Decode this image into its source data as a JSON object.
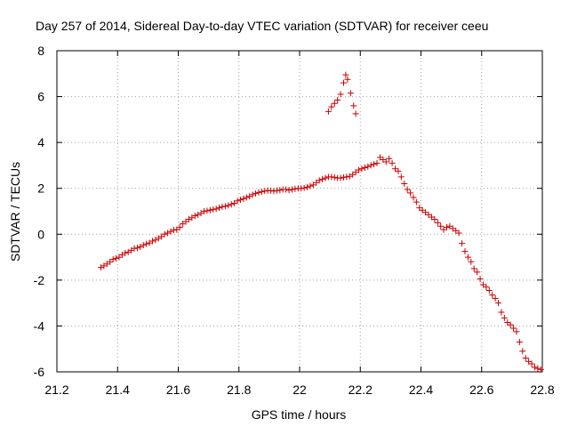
{
  "chart_data": {
    "type": "scatter",
    "title": "Day 257 of 2014, Sidereal Day-to-day VTEC variation (SDTVAR) for receiver ceeu",
    "xlabel": "GPS time / hours",
    "ylabel": "SDTVAR / TECUs",
    "xlim": [
      21.2,
      22.8
    ],
    "ylim": [
      -6,
      8
    ],
    "xticks": [
      21.2,
      21.4,
      21.6,
      21.8,
      22.0,
      22.2,
      22.4,
      22.6,
      22.8
    ],
    "xtick_labels": [
      "21.2",
      "21.4",
      "21.6",
      "21.8",
      "22",
      "22.2",
      "22.4",
      "22.6",
      "22.8"
    ],
    "yticks": [
      -6,
      -4,
      -2,
      0,
      2,
      4,
      6,
      8
    ],
    "ytick_labels": [
      "-6",
      "-4",
      "-2",
      "0",
      "2",
      "4",
      "6",
      "8"
    ],
    "grid": true,
    "marker": "+",
    "marker_color": "#cc0000",
    "series": [
      {
        "name": "SDTVAR",
        "points": [
          [
            21.345,
            -1.45
          ],
          [
            21.355,
            -1.38
          ],
          [
            21.365,
            -1.3
          ],
          [
            21.375,
            -1.2
          ],
          [
            21.385,
            -1.1
          ],
          [
            21.395,
            -1.05
          ],
          [
            21.405,
            -1.0
          ],
          [
            21.415,
            -0.9
          ],
          [
            21.425,
            -0.82
          ],
          [
            21.435,
            -0.78
          ],
          [
            21.445,
            -0.7
          ],
          [
            21.455,
            -0.62
          ],
          [
            21.465,
            -0.6
          ],
          [
            21.475,
            -0.55
          ],
          [
            21.485,
            -0.48
          ],
          [
            21.495,
            -0.42
          ],
          [
            21.505,
            -0.38
          ],
          [
            21.515,
            -0.3
          ],
          [
            21.525,
            -0.25
          ],
          [
            21.535,
            -0.18
          ],
          [
            21.545,
            -0.1
          ],
          [
            21.555,
            0.0
          ],
          [
            21.565,
            0.05
          ],
          [
            21.575,
            0.12
          ],
          [
            21.585,
            0.18
          ],
          [
            21.595,
            0.2
          ],
          [
            21.605,
            0.3
          ],
          [
            21.615,
            0.45
          ],
          [
            21.625,
            0.55
          ],
          [
            21.635,
            0.65
          ],
          [
            21.645,
            0.72
          ],
          [
            21.655,
            0.8
          ],
          [
            21.665,
            0.85
          ],
          [
            21.675,
            0.92
          ],
          [
            21.685,
            1.0
          ],
          [
            21.695,
            1.02
          ],
          [
            21.705,
            1.05
          ],
          [
            21.715,
            1.08
          ],
          [
            21.725,
            1.1
          ],
          [
            21.735,
            1.15
          ],
          [
            21.745,
            1.2
          ],
          [
            21.755,
            1.22
          ],
          [
            21.765,
            1.25
          ],
          [
            21.775,
            1.3
          ],
          [
            21.785,
            1.35
          ],
          [
            21.795,
            1.45
          ],
          [
            21.805,
            1.5
          ],
          [
            21.815,
            1.55
          ],
          [
            21.825,
            1.6
          ],
          [
            21.835,
            1.65
          ],
          [
            21.845,
            1.72
          ],
          [
            21.855,
            1.78
          ],
          [
            21.865,
            1.82
          ],
          [
            21.875,
            1.85
          ],
          [
            21.885,
            1.88
          ],
          [
            21.895,
            1.9
          ],
          [
            21.905,
            1.9
          ],
          [
            21.915,
            1.88
          ],
          [
            21.925,
            1.9
          ],
          [
            21.935,
            1.92
          ],
          [
            21.945,
            1.95
          ],
          [
            21.955,
            1.95
          ],
          [
            21.965,
            1.92
          ],
          [
            21.975,
            1.95
          ],
          [
            21.985,
            1.98
          ],
          [
            21.995,
            2.0
          ],
          [
            22.005,
            2.0
          ],
          [
            22.015,
            2.02
          ],
          [
            22.025,
            2.05
          ],
          [
            22.035,
            2.1
          ],
          [
            22.045,
            2.15
          ],
          [
            22.055,
            2.25
          ],
          [
            22.065,
            2.35
          ],
          [
            22.075,
            2.4
          ],
          [
            22.085,
            2.45
          ],
          [
            22.095,
            2.5
          ],
          [
            22.105,
            2.5
          ],
          [
            22.115,
            2.48
          ],
          [
            22.125,
            2.45
          ],
          [
            22.135,
            2.45
          ],
          [
            22.145,
            2.48
          ],
          [
            22.155,
            2.5
          ],
          [
            22.165,
            2.52
          ],
          [
            22.175,
            2.6
          ],
          [
            22.185,
            2.7
          ],
          [
            22.195,
            2.8
          ],
          [
            22.205,
            2.85
          ],
          [
            22.215,
            2.9
          ],
          [
            22.225,
            2.95
          ],
          [
            22.235,
            3.0
          ],
          [
            22.245,
            3.05
          ],
          [
            22.255,
            3.1
          ],
          [
            22.265,
            3.35
          ],
          [
            22.275,
            3.25
          ],
          [
            22.285,
            3.15
          ],
          [
            22.295,
            3.3
          ],
          [
            22.305,
            3.1
          ],
          [
            22.315,
            2.85
          ],
          [
            22.325,
            2.75
          ],
          [
            22.335,
            2.5
          ],
          [
            22.345,
            2.2
          ],
          [
            22.355,
            1.95
          ],
          [
            22.365,
            1.8
          ],
          [
            22.375,
            1.6
          ],
          [
            22.385,
            1.4
          ],
          [
            22.395,
            1.15
          ],
          [
            22.405,
            1.05
          ],
          [
            22.415,
            0.95
          ],
          [
            22.425,
            0.85
          ],
          [
            22.435,
            0.75
          ],
          [
            22.445,
            0.65
          ],
          [
            22.455,
            0.5
          ],
          [
            22.465,
            0.35
          ],
          [
            22.475,
            0.2
          ],
          [
            22.485,
            0.3
          ],
          [
            22.495,
            0.35
          ],
          [
            22.505,
            0.25
          ],
          [
            22.515,
            0.15
          ],
          [
            22.525,
            0.05
          ],
          [
            22.535,
            -0.4
          ],
          [
            22.545,
            -0.75
          ],
          [
            22.555,
            -1.0
          ],
          [
            22.565,
            -1.2
          ],
          [
            22.575,
            -1.5
          ],
          [
            22.585,
            -1.65
          ],
          [
            22.595,
            -1.95
          ],
          [
            22.605,
            -2.2
          ],
          [
            22.615,
            -2.3
          ],
          [
            22.625,
            -2.45
          ],
          [
            22.635,
            -2.65
          ],
          [
            22.645,
            -2.8
          ],
          [
            22.655,
            -3.0
          ],
          [
            22.665,
            -3.4
          ],
          [
            22.675,
            -3.65
          ],
          [
            22.685,
            -3.85
          ],
          [
            22.695,
            -3.95
          ],
          [
            22.705,
            -4.1
          ],
          [
            22.715,
            -4.25
          ],
          [
            22.725,
            -4.7
          ],
          [
            22.735,
            -5.1
          ],
          [
            22.745,
            -5.4
          ],
          [
            22.755,
            -5.55
          ],
          [
            22.765,
            -5.65
          ],
          [
            22.775,
            -5.8
          ],
          [
            22.785,
            -5.85
          ],
          [
            22.795,
            -5.9
          ],
          [
            22.095,
            5.35
          ],
          [
            22.105,
            5.55
          ],
          [
            22.115,
            5.7
          ],
          [
            22.125,
            5.85
          ],
          [
            22.135,
            6.1
          ],
          [
            22.145,
            6.6
          ],
          [
            22.152,
            6.95
          ],
          [
            22.158,
            6.75
          ],
          [
            22.168,
            6.15
          ],
          [
            22.178,
            5.6
          ],
          [
            22.185,
            5.25
          ]
        ]
      }
    ]
  }
}
